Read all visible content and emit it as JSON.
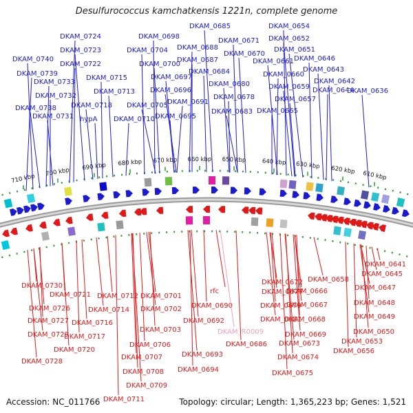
{
  "title": "Desulfurococcus kamchatkensis 1221n, complete genome",
  "accession_text": "Accession: NC_011766",
  "topology_text": "Topology: circular; Length: 1,365,223 bp; Genes: 1,521",
  "colors": {
    "forward": "#1a1ad0",
    "reverse": "#e01818",
    "rna": "#f0a0c0"
  },
  "ruler_labels": [
    "710 kbp",
    "700 kbp",
    "690 kbp",
    "680 kbp",
    "670 kbp",
    "660 kbp",
    "650 kbp",
    "640 kbp",
    "630 kbp",
    "620 kbp",
    "610 kbp"
  ],
  "forward_genes": [
    "DKAM_0724",
    "DKAM_0698",
    "DKAM_0685",
    "DKAM_0654",
    "DKAM_0723",
    "DKAM_0704",
    "DKAM_0688",
    "DKAM_0671",
    "DKAM_0652",
    "DKAM_0740",
    "DKAM_0722",
    "DKAM_0700",
    "DKAM_0687",
    "DKAM_0670",
    "DKAM_0651",
    "DKAM_0739",
    "DKAM_0715",
    "DKAM_0697",
    "DKAM_0684",
    "DKAM_0661",
    "DKAM_0646",
    "DKAM_0733",
    "DKAM_0713",
    "DKAM_0696",
    "DKAM_0680",
    "DKAM_0660",
    "DKAM_0643",
    "DKAM_0732",
    "DKAM_0718",
    "DKAM_0705",
    "DKAM_0691",
    "DKAM_0678",
    "DKAM_0659",
    "DKAM_0642",
    "DKAM_0738",
    "hypA",
    "DKAM_0710",
    "DKAM_0695",
    "DKAM_0683",
    "DKAM_0657",
    "DKAM_0644",
    "DKAM_0731",
    "DKAM_0665",
    "DKAM_0636"
  ],
  "reverse_genes": [
    "DKAM_0641",
    "DKAM_0645",
    "DKAM_0672",
    "DKAM_0658",
    "DKAM_0730",
    "DKAM_0677",
    "DKAM_0666",
    "DKAM_0647",
    "DKAM_0721",
    "DKAM_0712",
    "DKAM_0701",
    "rfc",
    "DKAM_0648",
    "DKAM_0726",
    "DKAM_0714",
    "DKAM_0702",
    "DKAM_0690",
    "DKAM_0679",
    "DKAM_0667",
    "DKAM_0649",
    "DKAM_0727",
    "DKAM_0716",
    "DKAM_0692",
    "DKAM_0681",
    "DKAM_0668",
    "DKAM_0703",
    "DKAM_0650",
    "DKAM_0729",
    "DKAM_0717",
    "DKAM_0686",
    "DKAM_0669",
    "DKAM_0673",
    "DKAM_0653",
    "DKAM_0706",
    "DKAM_0720",
    "DKAM_0693",
    "DKAM_0656",
    "DKAM_0707",
    "DKAM_0674",
    "DKAM_0728",
    "DKAM_0694",
    "DKAM_0708",
    "DKAM_0675",
    "DKAM_0709",
    "DKAM_0711"
  ],
  "rna_genes": [
    "DKAM_R0009"
  ]
}
